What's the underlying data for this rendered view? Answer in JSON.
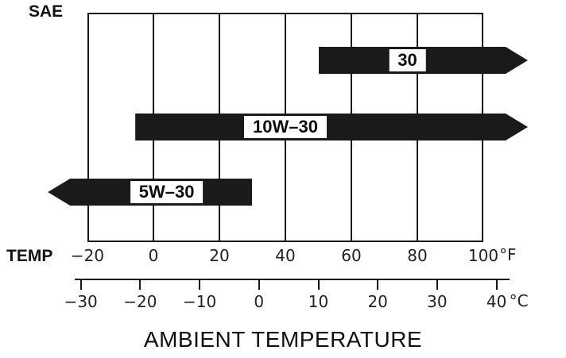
{
  "chart_data": {
    "type": "bar",
    "subtype": "horizontal-range-bars",
    "title": "AMBIENT TEMPERATURE",
    "axis_top_left_label": "SAE",
    "axis_bottom_left_label": "TEMP",
    "grid": true,
    "legend": "none",
    "fahrenheit_axis": {
      "unit": "°F",
      "visible_range_f": [
        -20,
        100
      ],
      "ticks": [
        {
          "f": -20,
          "label": "−20"
        },
        {
          "f": 0,
          "label": "0"
        },
        {
          "f": 20,
          "label": "20"
        },
        {
          "f": 40,
          "label": "40"
        },
        {
          "f": 60,
          "label": "60"
        },
        {
          "f": 80,
          "label": "80"
        },
        {
          "f": 100,
          "label": "100"
        }
      ]
    },
    "celsius_axis": {
      "unit": "°C",
      "ticks": [
        {
          "c": -30,
          "label": "−30"
        },
        {
          "c": -20,
          "label": "−20"
        },
        {
          "c": -10,
          "label": "−10"
        },
        {
          "c": 0,
          "label": "0"
        },
        {
          "c": 10,
          "label": "10"
        },
        {
          "c": 20,
          "label": "20"
        },
        {
          "c": 30,
          "label": "30"
        },
        {
          "c": 40,
          "label": "40"
        }
      ]
    },
    "series": [
      {
        "name": "30",
        "from_f": 50,
        "to_f": 113.5,
        "open_end": "right",
        "label_center_f": 77
      },
      {
        "name": "10W–30",
        "from_f": -5.5,
        "to_f": 113.5,
        "open_end": "right",
        "label_center_f": 40
      },
      {
        "name": "5W–30",
        "from_f": -32,
        "to_f": 30,
        "open_end": "left",
        "label_center_f": 4
      }
    ],
    "colors": {
      "bar": "#1a1a1a",
      "grid": "#161616",
      "label_box_bg": "#ffffff",
      "text": "#111111"
    }
  }
}
